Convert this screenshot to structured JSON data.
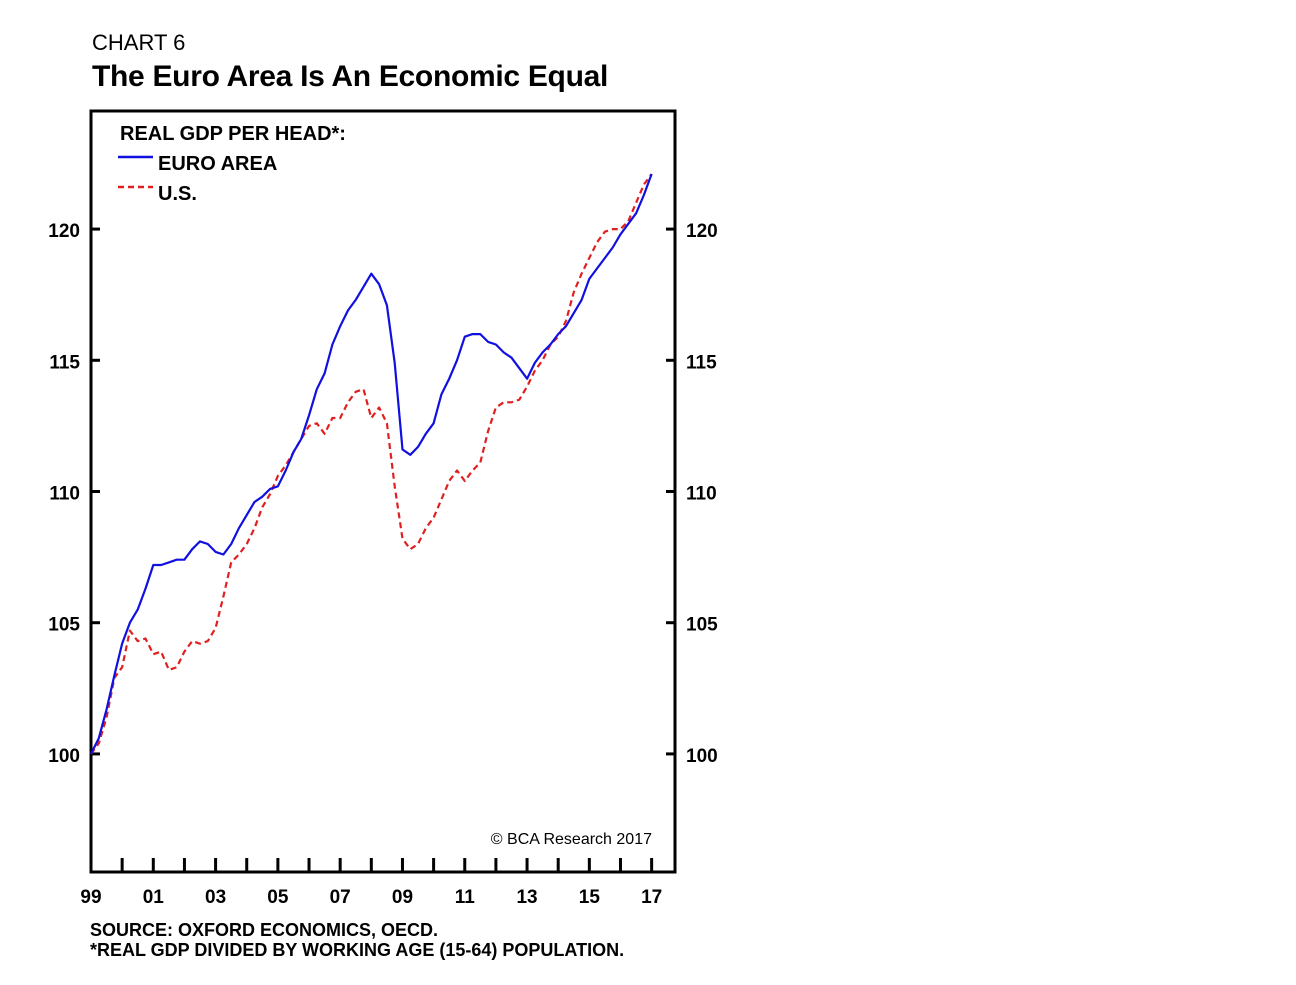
{
  "header": {
    "chart_number": "CHART 6",
    "title": "The Euro Area Is An Economic Equal"
  },
  "footer": {
    "source": "SOURCE: OXFORD ECONOMICS, OECD.",
    "note": "*REAL GDP DIVIDED BY WORKING AGE (15-64) POPULATION."
  },
  "chart_data": {
    "type": "line",
    "title": "The Euro Area Is An Economic Equal",
    "legend_title": "REAL GDP PER HEAD*:",
    "legend_position": "top-left",
    "credit": "© BCA Research 2017",
    "xlabel": "",
    "ylabel": "",
    "xlim": [
      1999.0,
      2017.75
    ],
    "ylim": [
      95.5,
      124.5
    ],
    "x_tick_labels": [
      "99",
      "01",
      "03",
      "05",
      "07",
      "09",
      "11",
      "13",
      "15",
      "17"
    ],
    "x_tick_values": [
      1999.0,
      2001.0,
      2003.0,
      2005.0,
      2007.0,
      2009.0,
      2011.0,
      2013.0,
      2015.0,
      2017.0
    ],
    "y_tick_values": [
      100,
      105,
      110,
      115,
      120
    ],
    "y_tick_labels": [
      "100",
      "105",
      "110",
      "115",
      "120"
    ],
    "colors": {
      "euro": "#1010e0",
      "us": "#e02020",
      "axis": "#000000"
    },
    "series": [
      {
        "name": "EURO AREA",
        "style": "solid",
        "x": [
          1999.0,
          1999.25,
          1999.5,
          1999.75,
          2000.0,
          2000.25,
          2000.5,
          2000.75,
          2001.0,
          2001.25,
          2001.5,
          2001.75,
          2002.0,
          2002.25,
          2002.5,
          2002.75,
          2003.0,
          2003.25,
          2003.5,
          2003.75,
          2004.0,
          2004.25,
          2004.5,
          2004.75,
          2005.0,
          2005.25,
          2005.5,
          2005.75,
          2006.0,
          2006.25,
          2006.5,
          2006.75,
          2007.0,
          2007.25,
          2007.5,
          2007.75,
          2008.0,
          2008.25,
          2008.5,
          2008.75,
          2009.0,
          2009.25,
          2009.5,
          2009.75,
          2010.0,
          2010.25,
          2010.5,
          2010.75,
          2011.0,
          2011.25,
          2011.5,
          2011.75,
          2012.0,
          2012.25,
          2012.5,
          2012.75,
          2013.0,
          2013.25,
          2013.5,
          2013.75,
          2014.0,
          2014.25,
          2014.5,
          2014.75,
          2015.0,
          2015.25,
          2015.5,
          2015.75,
          2016.0,
          2016.25,
          2016.5,
          2016.75,
          2017.0
        ],
        "values": [
          100.0,
          100.6,
          101.7,
          103.0,
          104.2,
          105.0,
          105.5,
          106.3,
          107.2,
          107.2,
          107.3,
          107.4,
          107.4,
          107.8,
          108.1,
          108.0,
          107.7,
          107.6,
          108.0,
          108.6,
          109.1,
          109.6,
          109.8,
          110.1,
          110.2,
          110.8,
          111.5,
          112.0,
          112.9,
          113.9,
          114.5,
          115.6,
          116.3,
          116.9,
          117.3,
          117.8,
          118.3,
          117.9,
          117.1,
          114.9,
          111.6,
          111.4,
          111.7,
          112.2,
          112.6,
          113.7,
          114.3,
          115.0,
          115.9,
          116.0,
          116.0,
          115.7,
          115.6,
          115.3,
          115.1,
          114.7,
          114.3,
          114.9,
          115.3,
          115.6,
          116.0,
          116.3,
          116.8,
          117.3,
          118.1,
          118.5,
          118.9,
          119.3,
          119.8,
          120.2,
          120.6,
          121.3,
          122.1
        ]
      },
      {
        "name": "U.S.",
        "style": "dashed",
        "x": [
          1999.0,
          1999.25,
          1999.5,
          1999.75,
          2000.0,
          2000.25,
          2000.5,
          2000.75,
          2001.0,
          2001.25,
          2001.5,
          2001.75,
          2002.0,
          2002.25,
          2002.5,
          2002.75,
          2003.0,
          2003.25,
          2003.5,
          2003.75,
          2004.0,
          2004.25,
          2004.5,
          2004.75,
          2005.0,
          2005.25,
          2005.5,
          2005.75,
          2006.0,
          2006.25,
          2006.5,
          2006.75,
          2007.0,
          2007.25,
          2007.5,
          2007.75,
          2008.0,
          2008.25,
          2008.5,
          2008.75,
          2009.0,
          2009.25,
          2009.5,
          2009.75,
          2010.0,
          2010.25,
          2010.5,
          2010.75,
          2011.0,
          2011.25,
          2011.5,
          2011.75,
          2012.0,
          2012.25,
          2012.5,
          2012.75,
          2013.0,
          2013.25,
          2013.5,
          2013.75,
          2014.0,
          2014.25,
          2014.5,
          2014.75,
          2015.0,
          2015.25,
          2015.5,
          2015.75,
          2016.0,
          2016.25,
          2016.5,
          2016.75,
          2017.0
        ],
        "values": [
          100.0,
          100.4,
          101.4,
          102.9,
          103.3,
          104.7,
          104.3,
          104.4,
          103.8,
          103.9,
          103.2,
          103.3,
          103.9,
          104.3,
          104.2,
          104.3,
          104.8,
          106.0,
          107.3,
          107.6,
          108.0,
          108.6,
          109.4,
          109.9,
          110.6,
          111.0,
          111.5,
          112.0,
          112.5,
          112.6,
          112.2,
          112.8,
          112.8,
          113.4,
          113.8,
          113.9,
          112.8,
          113.2,
          112.6,
          110.2,
          108.2,
          107.8,
          108.0,
          108.6,
          109.0,
          109.7,
          110.4,
          110.8,
          110.4,
          110.8,
          111.1,
          112.3,
          113.2,
          113.4,
          113.4,
          113.5,
          114.0,
          114.6,
          115.0,
          115.6,
          115.9,
          116.5,
          117.6,
          118.3,
          118.9,
          119.5,
          119.9,
          120.0,
          120.0,
          120.3,
          121.0,
          121.7,
          122.1
        ]
      }
    ]
  }
}
